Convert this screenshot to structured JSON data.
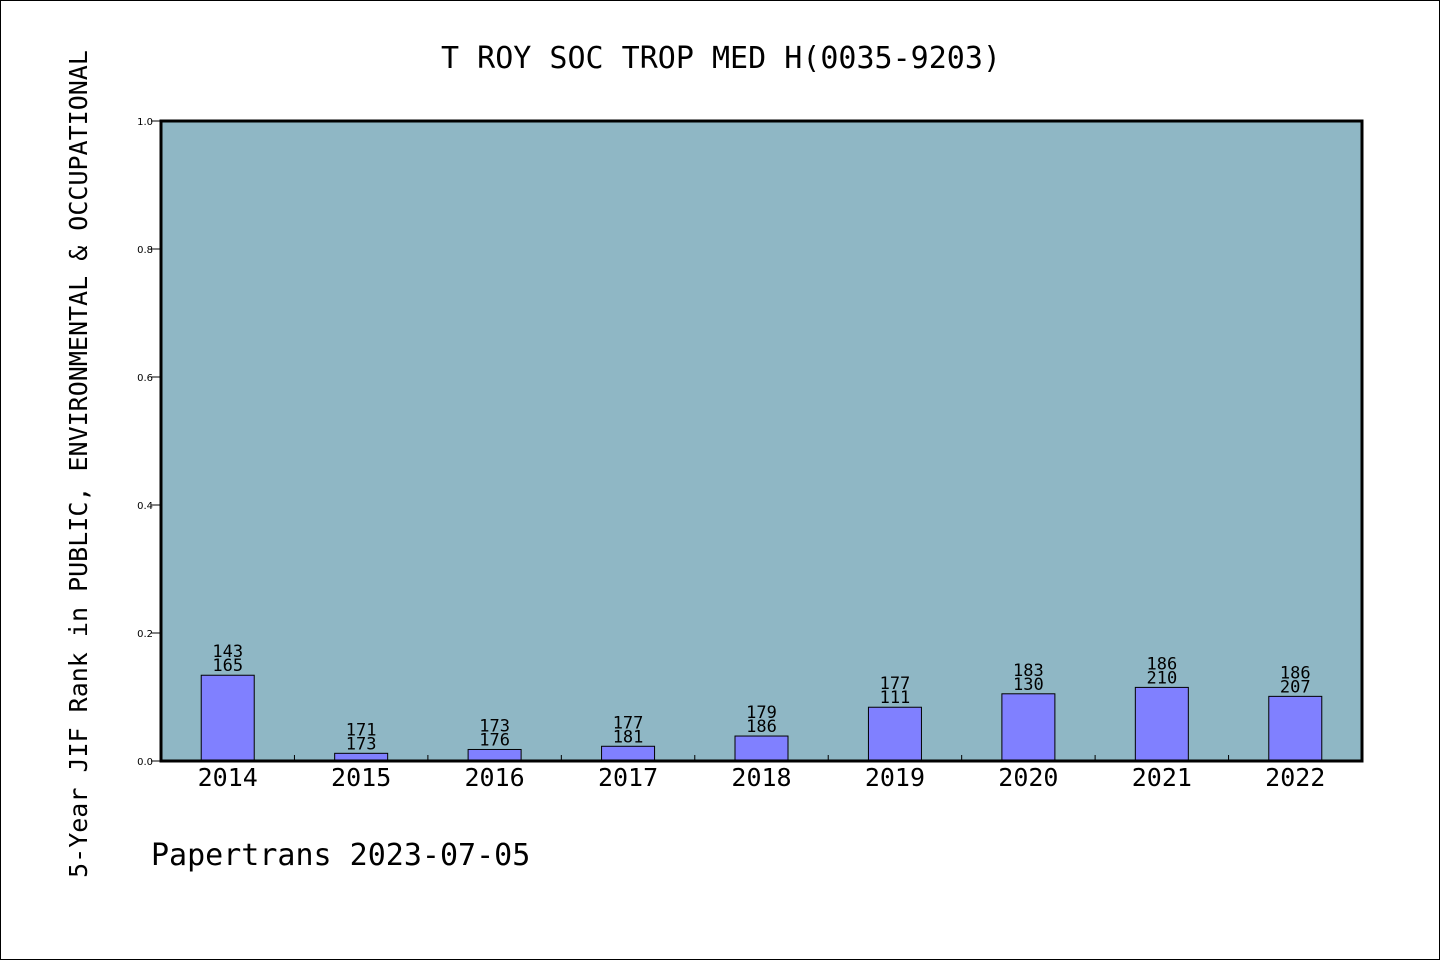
{
  "chart_data": {
    "type": "bar",
    "title": "T ROY SOC TROP MED H(0035-9203)",
    "ylabel": "5-Year JIF Rank in PUBLIC, ENVIRONMENTAL & OCCUPATIONAL",
    "xlabel": "",
    "footer": "Papertrans 2023-07-05",
    "ylim": [
      0,
      1.0
    ],
    "yticks": [
      "0.0",
      "0.2",
      "0.4",
      "0.6",
      "0.8",
      "1.0"
    ],
    "ytick_values": [
      0.0,
      0.2,
      0.4,
      0.6,
      0.8,
      1.0
    ],
    "grid": false,
    "categories": [
      "2014",
      "2015",
      "2016",
      "2017",
      "2018",
      "2019",
      "2020",
      "2021",
      "2022"
    ],
    "values": [
      0.134,
      0.012,
      0.018,
      0.023,
      0.039,
      0.084,
      0.105,
      0.115,
      0.101
    ],
    "label_top": [
      "143",
      "171",
      "173",
      "177",
      "179",
      "177",
      "183",
      "186",
      "186"
    ],
    "label_bottom": [
      "165",
      "173",
      "176",
      "181",
      "186",
      "111",
      "130",
      "210",
      "207"
    ],
    "colors": {
      "plot_background": "#8fb7c5",
      "bar_fill": "#8080ff",
      "bar_stroke": "#000000",
      "axis": "#000000"
    }
  }
}
